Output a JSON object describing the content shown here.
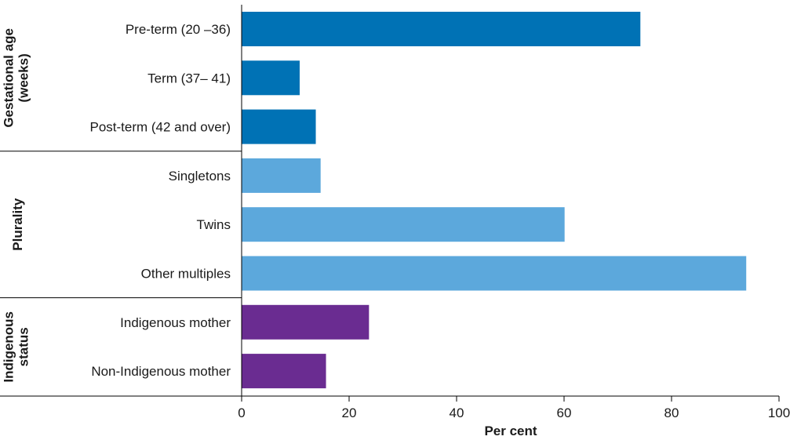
{
  "chart_data": {
    "type": "bar",
    "orientation": "horizontal",
    "xlabel": "Per cent",
    "ylabel": "",
    "xlim": [
      0,
      100
    ],
    "x_ticks": [
      0,
      20,
      40,
      60,
      80,
      100
    ],
    "grid": false,
    "groups": [
      {
        "name": "Gestational age (weeks)",
        "name_lines": [
          "Gestational age",
          "(weeks)"
        ],
        "color": "#0072b5",
        "categories": [
          "Pre-term (20 –36)",
          "Term (37– 41)",
          "Post-term (42 and over)"
        ],
        "values": [
          74.2,
          10.8,
          13.8
        ]
      },
      {
        "name": "Plurality",
        "name_lines": [
          "Plurality"
        ],
        "color": "#5ca8dc",
        "categories": [
          "Singletons",
          "Twins",
          "Other multiples"
        ],
        "values": [
          14.7,
          60.1,
          93.9
        ]
      },
      {
        "name": "Indigenous status",
        "name_lines": [
          "Indigenous",
          "status"
        ],
        "color": "#6a2c91",
        "categories": [
          "Indigenous mother",
          "Non-Indigenous mother"
        ],
        "values": [
          23.7,
          15.7
        ]
      }
    ]
  }
}
